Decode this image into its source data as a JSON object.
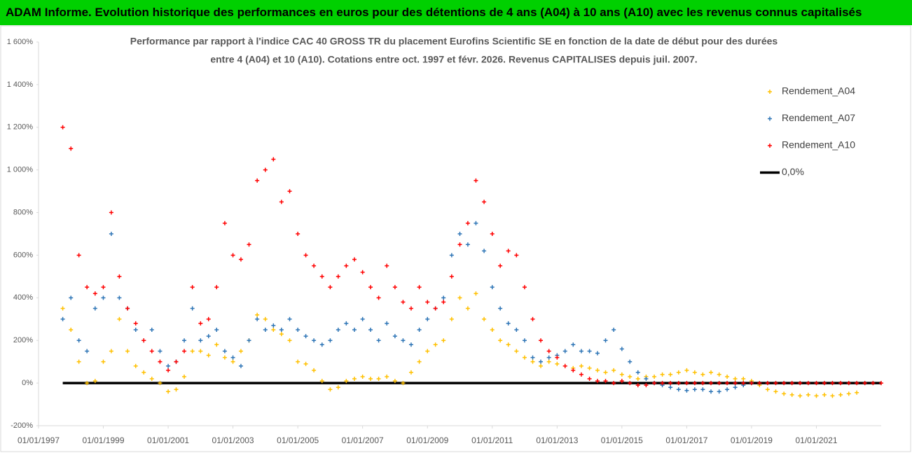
{
  "header": "ADAM Informe. Evolution historique des performances en euros pour des détentions de 4 ans (A04) à 10 ans (A10) avec les revenus connus capitalisés",
  "chart_data": {
    "type": "scatter",
    "subtitle": [
      "Performance par rapport à l'indice CAC 40 GROSS TR  du placement Eurofins Scientific SE en fonction de la date de début pour des durées",
      "entre 4 (A04) et 10 (A10).  Cotations entre oct. 1997 et févr. 2026. Revenus CAPITALISES depuis juil. 2007."
    ],
    "x": [
      "1997-10-01",
      "1998-01-01",
      "1998-04-01",
      "1998-07-01",
      "1998-10-01",
      "1999-01-01",
      "1999-04-01",
      "1999-07-01",
      "1999-10-01",
      "2000-01-01",
      "2000-04-01",
      "2000-07-01",
      "2000-10-01",
      "2001-01-01",
      "2001-04-01",
      "2001-07-01",
      "2001-10-01",
      "2002-01-01",
      "2002-04-01",
      "2002-07-01",
      "2002-10-01",
      "2003-01-01",
      "2003-04-01",
      "2003-07-01",
      "2003-10-01",
      "2004-01-01",
      "2004-04-01",
      "2004-07-01",
      "2004-10-01",
      "2005-01-01",
      "2005-04-01",
      "2005-07-01",
      "2005-10-01",
      "2006-01-01",
      "2006-04-01",
      "2006-07-01",
      "2006-10-01",
      "2007-01-01",
      "2007-04-01",
      "2007-07-01",
      "2007-10-01",
      "2008-01-01",
      "2008-04-01",
      "2008-07-01",
      "2008-10-01",
      "2009-01-01",
      "2009-04-01",
      "2009-07-01",
      "2009-10-01",
      "2010-01-01",
      "2010-04-01",
      "2010-07-01",
      "2010-10-01",
      "2011-01-01",
      "2011-04-01",
      "2011-07-01",
      "2011-10-01",
      "2012-01-01",
      "2012-04-01",
      "2012-07-01",
      "2012-10-01",
      "2013-01-01",
      "2013-04-01",
      "2013-07-01",
      "2013-10-01",
      "2014-01-01",
      "2014-04-01",
      "2014-07-01",
      "2014-10-01",
      "2015-01-01",
      "2015-04-01",
      "2015-07-01",
      "2015-10-01",
      "2016-01-01",
      "2016-04-01",
      "2016-07-01",
      "2016-10-01",
      "2017-01-01",
      "2017-04-01",
      "2017-07-01",
      "2017-10-01",
      "2018-01-01",
      "2018-04-01",
      "2018-07-01",
      "2018-10-01",
      "2019-01-01",
      "2019-04-01",
      "2019-07-01",
      "2019-10-01",
      "2020-01-01",
      "2020-04-01",
      "2020-07-01",
      "2020-10-01",
      "2021-01-01",
      "2021-04-01",
      "2021-07-01",
      "2021-10-01",
      "2022-01-01",
      "2022-04-01",
      "2022-07-01",
      "2022-10-01",
      "2023-01-01"
    ],
    "series": [
      {
        "name": "Rendement_A04",
        "color": "#ffc000",
        "kind": "scatter",
        "values": [
          350,
          250,
          100,
          0,
          10,
          100,
          150,
          300,
          150,
          80,
          50,
          20,
          0,
          -40,
          -30,
          30,
          150,
          150,
          130,
          180,
          120,
          100,
          150,
          200,
          320,
          300,
          250,
          230,
          200,
          100,
          90,
          60,
          10,
          -30,
          -20,
          10,
          20,
          30,
          20,
          20,
          30,
          10,
          0,
          50,
          100,
          150,
          180,
          200,
          300,
          400,
          350,
          420,
          300,
          250,
          200,
          180,
          150,
          120,
          100,
          80,
          100,
          90,
          80,
          70,
          80,
          70,
          60,
          50,
          60,
          40,
          30,
          20,
          30,
          30,
          40,
          40,
          50,
          60,
          50,
          40,
          50,
          40,
          30,
          20,
          20,
          10,
          -10,
          -30,
          -40,
          -50,
          -55,
          -60,
          -55,
          -60,
          -55,
          -60,
          -55,
          -50,
          -45,
          null,
          null,
          null
        ]
      },
      {
        "name": "Rendement_A07",
        "color": "#2e75b6",
        "kind": "scatter",
        "values": [
          300,
          400,
          200,
          150,
          350,
          400,
          700,
          400,
          350,
          250,
          200,
          250,
          150,
          80,
          100,
          200,
          350,
          200,
          220,
          250,
          150,
          120,
          80,
          200,
          300,
          250,
          270,
          250,
          300,
          250,
          220,
          200,
          180,
          200,
          250,
          280,
          250,
          300,
          250,
          200,
          280,
          220,
          200,
          180,
          250,
          300,
          350,
          400,
          600,
          700,
          650,
          750,
          620,
          450,
          350,
          280,
          250,
          200,
          120,
          100,
          120,
          130,
          150,
          180,
          150,
          150,
          140,
          200,
          250,
          160,
          100,
          50,
          20,
          0,
          -10,
          -20,
          -30,
          -35,
          -30,
          -30,
          -40,
          -40,
          -30,
          -20,
          -10,
          0,
          null,
          null,
          null,
          null,
          null,
          null,
          null,
          null,
          null,
          null,
          null,
          null,
          null,
          null,
          null,
          null
        ]
      },
      {
        "name": "Rendement_A10",
        "color": "#ff0000",
        "kind": "scatter",
        "values": [
          1200,
          1100,
          600,
          450,
          420,
          450,
          800,
          500,
          350,
          280,
          200,
          150,
          100,
          60,
          100,
          150,
          450,
          280,
          300,
          450,
          750,
          600,
          580,
          650,
          950,
          1000,
          1050,
          850,
          900,
          700,
          600,
          550,
          500,
          450,
          500,
          550,
          580,
          520,
          450,
          400,
          550,
          450,
          380,
          350,
          450,
          380,
          350,
          380,
          500,
          650,
          750,
          950,
          850,
          700,
          550,
          620,
          600,
          450,
          300,
          200,
          150,
          120,
          80,
          60,
          40,
          20,
          10,
          10,
          0,
          10,
          0,
          -10,
          -10,
          0,
          0,
          0,
          0,
          0,
          0,
          0,
          0,
          0,
          0,
          0,
          0,
          0,
          0,
          0,
          0,
          0,
          0,
          0,
          0,
          0,
          0,
          0,
          0,
          0,
          0,
          0,
          0,
          0
        ]
      },
      {
        "name": "0,0%",
        "color": "#000000",
        "kind": "line",
        "values": [
          0,
          0,
          0,
          0,
          0,
          0,
          0,
          0,
          0,
          0,
          0,
          0,
          0,
          0,
          0,
          0,
          0,
          0,
          0,
          0,
          0,
          0,
          0,
          0,
          0,
          0,
          0,
          0,
          0,
          0,
          0,
          0,
          0,
          0,
          0,
          0,
          0,
          0,
          0,
          0,
          0,
          0,
          0,
          0,
          0,
          0,
          0,
          0,
          0,
          0,
          0,
          0,
          0,
          0,
          0,
          0,
          0,
          0,
          0,
          0,
          0,
          0,
          0,
          0,
          0,
          0,
          0,
          0,
          0,
          0,
          0,
          0,
          0,
          0,
          0,
          0,
          0,
          0,
          0,
          0,
          0,
          0,
          0,
          0,
          0,
          0,
          0,
          0,
          0,
          0,
          0,
          0,
          0,
          0,
          0,
          0,
          0,
          0,
          0,
          0,
          0,
          0
        ]
      }
    ],
    "xlim": [
      "1997-01-01",
      "2023-01-01"
    ],
    "xticks": [
      {
        "value": "1997-01-01",
        "label": "01/01/1997"
      },
      {
        "value": "1999-01-01",
        "label": "01/01/1999"
      },
      {
        "value": "2001-01-01",
        "label": "01/01/2001"
      },
      {
        "value": "2003-01-01",
        "label": "01/01/2003"
      },
      {
        "value": "2005-01-01",
        "label": "01/01/2005"
      },
      {
        "value": "2007-01-01",
        "label": "01/01/2007"
      },
      {
        "value": "2009-01-01",
        "label": "01/01/2009"
      },
      {
        "value": "2011-01-01",
        "label": "01/01/2011"
      },
      {
        "value": "2013-01-01",
        "label": "01/01/2013"
      },
      {
        "value": "2015-01-01",
        "label": "01/01/2015"
      },
      {
        "value": "2017-01-01",
        "label": "01/01/2017"
      },
      {
        "value": "2019-01-01",
        "label": "01/01/2019"
      },
      {
        "value": "2021-01-01",
        "label": "01/01/2021"
      }
    ],
    "ylim": [
      -200,
      1600
    ],
    "yticks": [
      {
        "value": -200,
        "label": "-200%"
      },
      {
        "value": 0,
        "label": "0%"
      },
      {
        "value": 200,
        "label": "200%"
      },
      {
        "value": 400,
        "label": "400%"
      },
      {
        "value": 600,
        "label": "600%"
      },
      {
        "value": 800,
        "label": "800%"
      },
      {
        "value": 1000,
        "label": "1 000%"
      },
      {
        "value": 1200,
        "label": "1 200%"
      },
      {
        "value": 1400,
        "label": "1 400%"
      },
      {
        "value": 1600,
        "label": "1 600%"
      }
    ]
  }
}
